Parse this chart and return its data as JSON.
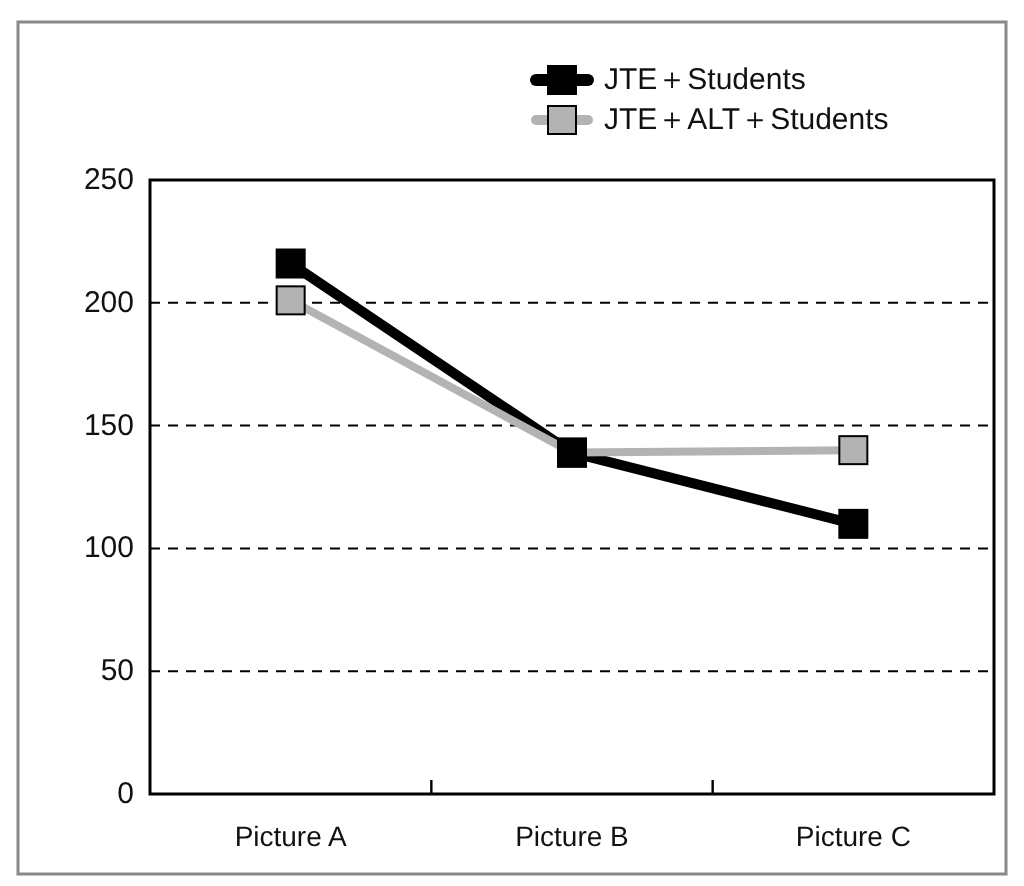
{
  "chart_data": {
    "type": "line",
    "categories": [
      "Picture A",
      "Picture B",
      "Picture C"
    ],
    "series": [
      {
        "name": "JTE＋Students",
        "color": "#000000",
        "values": [
          216,
          139,
          110
        ]
      },
      {
        "name": "JTE＋ALT＋Students",
        "color": "#b3b3b3",
        "values": [
          201,
          139,
          140
        ]
      }
    ],
    "ylim": [
      0,
      250
    ],
    "yticks": [
      0,
      50,
      100,
      150,
      200,
      250
    ],
    "grid": "y",
    "legend": "top right",
    "marker": "square",
    "line_style": "solid"
  }
}
